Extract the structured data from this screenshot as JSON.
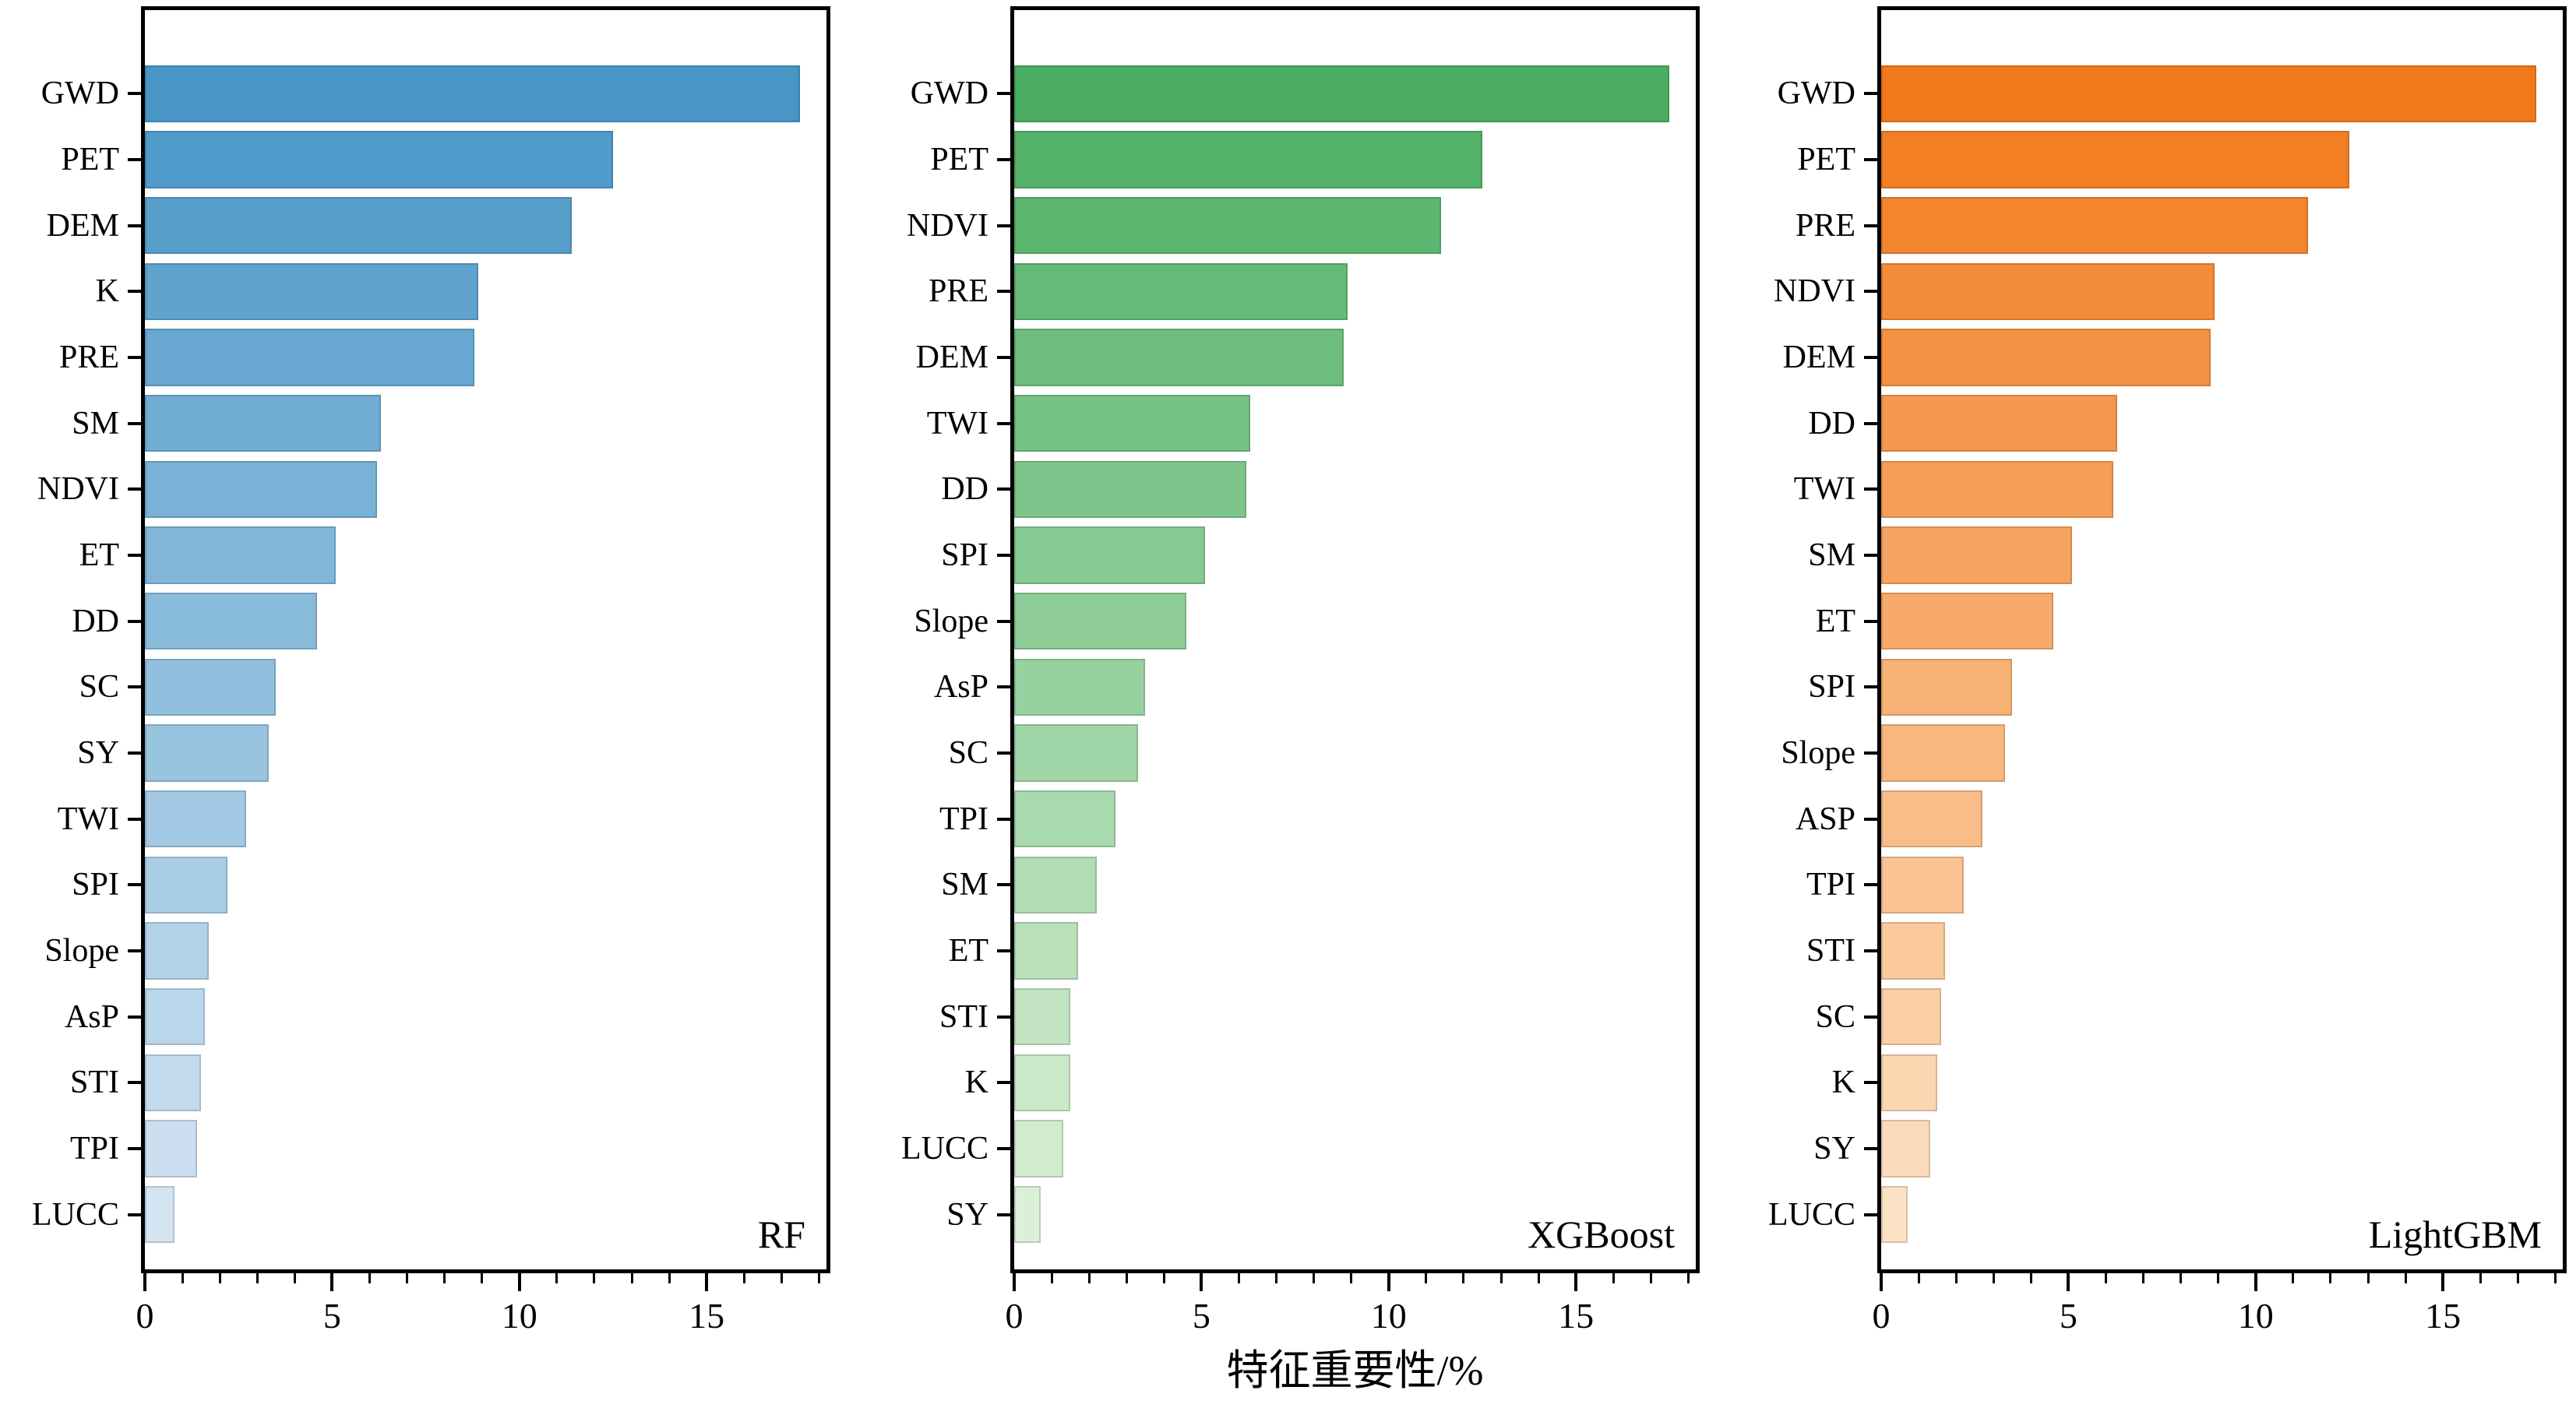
{
  "xlabel": "特征重要性/%",
  "frame_color": "#000000",
  "text_color": "#000000",
  "chart_data": [
    {
      "type": "bar",
      "orientation": "horizontal",
      "title": "RF",
      "categories": [
        "GWD",
        "PET",
        "DEM",
        "K",
        "PRE",
        "SM",
        "NDVI",
        "ET",
        "DD",
        "SC",
        "SY",
        "TWI",
        "SPI",
        "Slope",
        "AsP",
        "STI",
        "TPI",
        "LUCC"
      ],
      "values": [
        17.5,
        12.5,
        11.4,
        8.9,
        8.8,
        6.3,
        6.2,
        5.1,
        4.6,
        3.5,
        3.3,
        2.7,
        2.2,
        1.7,
        1.6,
        1.5,
        1.4,
        0.8
      ],
      "xlim": [
        0,
        18.2
      ],
      "xticks": [
        0,
        5,
        10,
        15
      ],
      "minor_tick_step": 1,
      "grid": false,
      "legend": null,
      "bar_color_top": "#4796C6",
      "bar_color_bottom": "#D3E4F3"
    },
    {
      "type": "bar",
      "orientation": "horizontal",
      "title": "XGBoost",
      "categories": [
        "GWD",
        "PET",
        "NDVI",
        "PRE",
        "DEM",
        "TWI",
        "DD",
        "SPI",
        "Slope",
        "AsP",
        "SC",
        "TPI",
        "SM",
        "ET",
        "STI",
        "K",
        "LUCC",
        "SY"
      ],
      "values": [
        17.5,
        12.5,
        11.4,
        8.9,
        8.8,
        6.3,
        6.2,
        5.1,
        4.6,
        3.5,
        3.3,
        2.7,
        2.2,
        1.7,
        1.5,
        1.5,
        1.3,
        0.7
      ],
      "xlim": [
        0,
        18.2
      ],
      "xticks": [
        0,
        5,
        10,
        15
      ],
      "minor_tick_step": 1,
      "grid": false,
      "legend": null,
      "bar_color_top": "#4BAE62",
      "bar_color_bottom": "#DCF0D7"
    },
    {
      "type": "bar",
      "orientation": "horizontal",
      "title": "LightGBM",
      "categories": [
        "GWD",
        "PET",
        "PRE",
        "NDVI",
        "DEM",
        "DD",
        "TWI",
        "SM",
        "ET",
        "SPI",
        "Slope",
        "ASP",
        "TPI",
        "STI",
        "SC",
        "K",
        "SY",
        "LUCC"
      ],
      "values": [
        17.5,
        12.5,
        11.4,
        8.9,
        8.8,
        6.3,
        6.2,
        5.1,
        4.6,
        3.5,
        3.3,
        2.7,
        2.2,
        1.7,
        1.6,
        1.5,
        1.3,
        0.7
      ],
      "xlim": [
        0,
        18.2
      ],
      "xticks": [
        0,
        5,
        10,
        15
      ],
      "minor_tick_step": 1,
      "grid": false,
      "legend": null,
      "bar_color_top": "#F2791B",
      "bar_color_bottom": "#FCE2C4"
    }
  ]
}
